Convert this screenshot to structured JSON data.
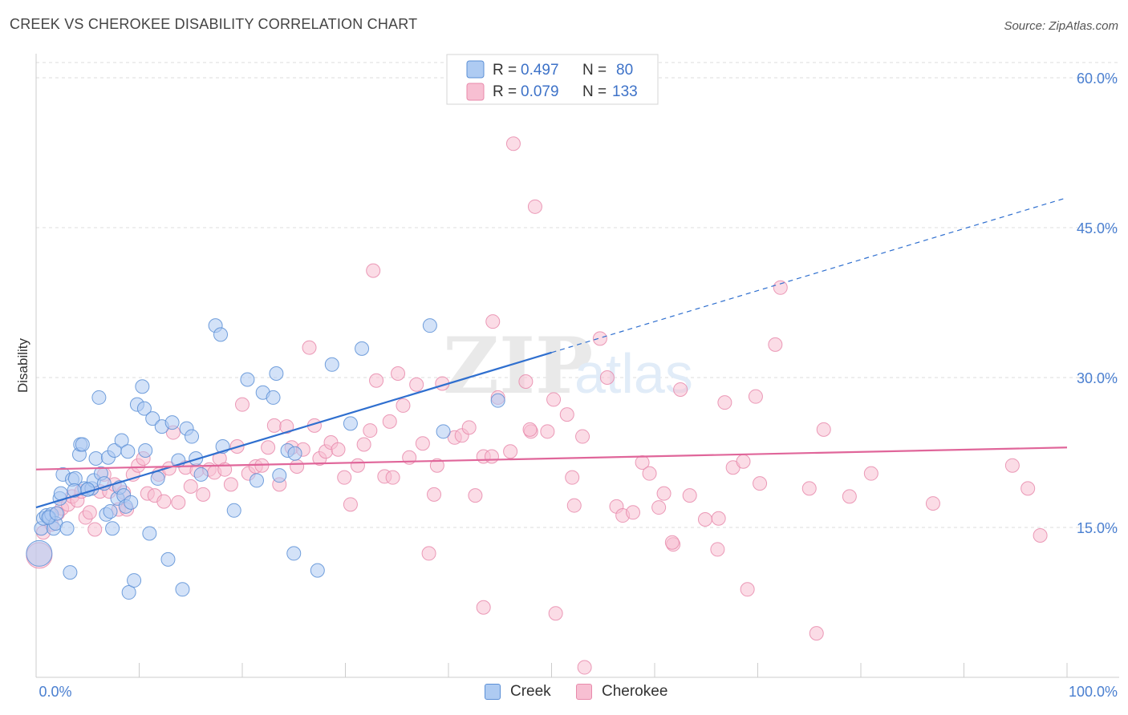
{
  "header": {
    "title": "CREEK VS CHEROKEE DISABILITY CORRELATION CHART",
    "source": "Source: ZipAtlas.com"
  },
  "watermark": {
    "part1": "ZIP",
    "part2": "atlas"
  },
  "colors": {
    "creek_fill": "#aecbf2",
    "creek_stroke": "#5b8fd6",
    "creek_line": "#2f6fcf",
    "cherokee_fill": "#f7bfd2",
    "cherokee_stroke": "#e88aab",
    "cherokee_line": "#e0669a",
    "tick_text": "#4a7fd0",
    "grid": "#dddddd"
  },
  "stats_legend": {
    "rows": [
      {
        "series": "Creek",
        "r_label": "R =",
        "r_value": "0.497",
        "n_label": "N =",
        "n_value": "80"
      },
      {
        "series": "Cherokee",
        "r_label": "R =",
        "r_value": "0.079",
        "n_label": "N =",
        "n_value": "133"
      }
    ]
  },
  "bottom_legend": {
    "items": [
      "Creek",
      "Cherokee"
    ]
  },
  "chart_data": {
    "type": "scatter",
    "title": "CREEK VS CHEROKEE DISABILITY CORRELATION CHART",
    "xlabel": "",
    "ylabel": "Disability",
    "xlim": [
      0,
      100
    ],
    "ylim": [
      0,
      60
    ],
    "x_tick_labels": [
      "0.0%",
      "100.0%"
    ],
    "y_ticks": [
      15,
      30,
      45,
      60
    ],
    "y_tick_labels": [
      "15.0%",
      "30.0%",
      "45.0%",
      "60.0%"
    ],
    "grid": true,
    "legend_position": "top-center",
    "series": [
      {
        "name": "Creek",
        "trend": {
          "x0": 0,
          "y0": 17.0,
          "x1": 50,
          "y1": 32.5,
          "dashed_to_x": 100,
          "dashed_to_y": 48.0
        },
        "points": [
          [
            0.3,
            12.4
          ],
          [
            0.5,
            14.9
          ],
          [
            0.7,
            15.9
          ],
          [
            1.0,
            16.2
          ],
          [
            1.3,
            16.0
          ],
          [
            1.5,
            16.3
          ],
          [
            1.7,
            14.9
          ],
          [
            1.9,
            15.4
          ],
          [
            2.3,
            17.9
          ],
          [
            2.4,
            18.4
          ],
          [
            2.6,
            20.3
          ],
          [
            3.0,
            14.9
          ],
          [
            3.3,
            10.5
          ],
          [
            3.5,
            19.8
          ],
          [
            3.8,
            19.9
          ],
          [
            4.2,
            22.3
          ],
          [
            4.3,
            23.3
          ],
          [
            4.5,
            23.3
          ],
          [
            4.7,
            18.9
          ],
          [
            5.0,
            18.8
          ],
          [
            5.4,
            18.9
          ],
          [
            5.6,
            19.7
          ],
          [
            5.8,
            21.9
          ],
          [
            6.1,
            28.0
          ],
          [
            6.3,
            20.4
          ],
          [
            6.6,
            19.4
          ],
          [
            6.8,
            16.3
          ],
          [
            7.0,
            22.0
          ],
          [
            7.2,
            16.6
          ],
          [
            7.4,
            14.9
          ],
          [
            7.6,
            22.7
          ],
          [
            7.9,
            17.9
          ],
          [
            8.1,
            19.0
          ],
          [
            8.3,
            23.7
          ],
          [
            8.5,
            18.2
          ],
          [
            8.7,
            17.1
          ],
          [
            8.9,
            22.6
          ],
          [
            9.0,
            8.5
          ],
          [
            9.5,
            9.7
          ],
          [
            9.8,
            27.3
          ],
          [
            10.3,
            29.1
          ],
          [
            10.5,
            26.9
          ],
          [
            10.6,
            22.7
          ],
          [
            11.0,
            14.4
          ],
          [
            11.3,
            25.9
          ],
          [
            11.8,
            19.9
          ],
          [
            12.2,
            25.1
          ],
          [
            12.8,
            11.8
          ],
          [
            13.2,
            25.5
          ],
          [
            13.8,
            21.7
          ],
          [
            14.2,
            8.8
          ],
          [
            14.6,
            24.9
          ],
          [
            15.1,
            24.1
          ],
          [
            15.5,
            21.9
          ],
          [
            16.0,
            20.3
          ],
          [
            17.4,
            35.2
          ],
          [
            17.9,
            34.3
          ],
          [
            18.1,
            23.1
          ],
          [
            19.2,
            16.7
          ],
          [
            20.5,
            29.8
          ],
          [
            21.4,
            19.7
          ],
          [
            22.0,
            28.5
          ],
          [
            23.0,
            28.0
          ],
          [
            23.3,
            30.4
          ],
          [
            24.4,
            22.7
          ],
          [
            23.6,
            20.2
          ],
          [
            25.0,
            12.4
          ],
          [
            25.1,
            22.4
          ],
          [
            27.3,
            10.7
          ],
          [
            28.7,
            31.3
          ],
          [
            30.5,
            25.4
          ],
          [
            31.6,
            32.9
          ],
          [
            38.2,
            35.2
          ],
          [
            39.5,
            24.6
          ],
          [
            44.8,
            27.7
          ],
          [
            5.0,
            18.8
          ],
          [
            3.7,
            18.7
          ],
          [
            1.2,
            16.0
          ],
          [
            9.2,
            17.5
          ],
          [
            2.0,
            16.4
          ]
        ]
      },
      {
        "name": "Cherokee",
        "trend": {
          "x0": 0,
          "y0": 20.8,
          "x1": 100,
          "y1": 23.0
        },
        "points": [
          [
            0.3,
            12.2
          ],
          [
            0.7,
            14.5
          ],
          [
            1.5,
            15.3
          ],
          [
            2.1,
            16.4
          ],
          [
            2.5,
            16.9
          ],
          [
            3.1,
            17.3
          ],
          [
            3.5,
            18.1
          ],
          [
            4.0,
            17.7
          ],
          [
            4.4,
            18.6
          ],
          [
            4.8,
            16.0
          ],
          [
            5.2,
            16.5
          ],
          [
            5.7,
            14.8
          ],
          [
            6.2,
            18.6
          ],
          [
            6.6,
            20.3
          ],
          [
            7.1,
            18.6
          ],
          [
            7.6,
            19.3
          ],
          [
            8.0,
            16.8
          ],
          [
            8.5,
            18.5
          ],
          [
            8.8,
            16.8
          ],
          [
            9.4,
            20.3
          ],
          [
            9.9,
            21.2
          ],
          [
            10.4,
            21.9
          ],
          [
            10.8,
            18.4
          ],
          [
            11.5,
            18.2
          ],
          [
            11.9,
            20.3
          ],
          [
            12.4,
            17.6
          ],
          [
            12.9,
            20.9
          ],
          [
            13.3,
            24.5
          ],
          [
            13.8,
            17.5
          ],
          [
            14.5,
            21.0
          ],
          [
            15.0,
            19.1
          ],
          [
            15.6,
            20.7
          ],
          [
            16.2,
            18.3
          ],
          [
            16.8,
            20.8
          ],
          [
            17.3,
            20.5
          ],
          [
            17.8,
            21.9
          ],
          [
            18.3,
            20.8
          ],
          [
            18.9,
            19.3
          ],
          [
            19.5,
            23.1
          ],
          [
            20.0,
            27.3
          ],
          [
            20.6,
            20.4
          ],
          [
            21.3,
            21.1
          ],
          [
            21.9,
            21.2
          ],
          [
            22.5,
            23.0
          ],
          [
            23.1,
            25.2
          ],
          [
            23.6,
            19.3
          ],
          [
            24.3,
            25.1
          ],
          [
            24.8,
            23.0
          ],
          [
            25.3,
            21.1
          ],
          [
            25.9,
            22.8
          ],
          [
            26.5,
            33.0
          ],
          [
            27.0,
            25.2
          ],
          [
            27.5,
            21.9
          ],
          [
            28.1,
            22.6
          ],
          [
            28.6,
            23.5
          ],
          [
            29.3,
            22.8
          ],
          [
            29.9,
            20.0
          ],
          [
            30.5,
            17.3
          ],
          [
            31.2,
            21.2
          ],
          [
            31.8,
            23.3
          ],
          [
            32.4,
            24.7
          ],
          [
            32.7,
            40.7
          ],
          [
            33.0,
            29.7
          ],
          [
            33.8,
            20.1
          ],
          [
            34.3,
            25.6
          ],
          [
            35.1,
            30.4
          ],
          [
            35.6,
            27.2
          ],
          [
            36.2,
            22.0
          ],
          [
            36.9,
            29.3
          ],
          [
            37.5,
            23.4
          ],
          [
            38.1,
            12.4
          ],
          [
            38.6,
            18.3
          ],
          [
            38.9,
            21.2
          ],
          [
            39.4,
            29.4
          ],
          [
            40.6,
            24.0
          ],
          [
            41.3,
            24.2
          ],
          [
            42.0,
            25.0
          ],
          [
            42.6,
            18.2
          ],
          [
            43.4,
            7.0
          ],
          [
            43.4,
            22.1
          ],
          [
            44.3,
            35.6
          ],
          [
            44.8,
            28.0
          ],
          [
            46.0,
            22.6
          ],
          [
            46.3,
            53.4
          ],
          [
            47.5,
            29.6
          ],
          [
            48.0,
            24.6
          ],
          [
            48.4,
            47.1
          ],
          [
            49.6,
            24.6
          ],
          [
            50.2,
            27.8
          ],
          [
            50.4,
            6.4
          ],
          [
            51.5,
            26.3
          ],
          [
            52.0,
            20.0
          ],
          [
            52.2,
            17.2
          ],
          [
            53.2,
            1.0
          ],
          [
            53.0,
            24.1
          ],
          [
            54.7,
            33.9
          ],
          [
            55.4,
            30.0
          ],
          [
            56.3,
            17.1
          ],
          [
            56.9,
            16.2
          ],
          [
            58.8,
            21.5
          ],
          [
            59.5,
            20.4
          ],
          [
            60.4,
            17.0
          ],
          [
            60.9,
            18.4
          ],
          [
            61.8,
            13.3
          ],
          [
            62.5,
            28.8
          ],
          [
            63.4,
            18.2
          ],
          [
            64.9,
            15.8
          ],
          [
            66.1,
            12.8
          ],
          [
            66.2,
            15.9
          ],
          [
            66.8,
            27.5
          ],
          [
            67.6,
            21.0
          ],
          [
            68.6,
            21.6
          ],
          [
            69.0,
            8.8
          ],
          [
            69.8,
            28.1
          ],
          [
            70.2,
            19.4
          ],
          [
            71.7,
            33.3
          ],
          [
            72.2,
            39.0
          ],
          [
            75.0,
            18.9
          ],
          [
            75.7,
            4.4
          ],
          [
            76.4,
            24.8
          ],
          [
            78.9,
            18.1
          ],
          [
            81.0,
            20.4
          ],
          [
            87.0,
            17.4
          ],
          [
            94.7,
            21.2
          ],
          [
            96.2,
            18.9
          ],
          [
            97.4,
            14.2
          ],
          [
            61.7,
            13.5
          ],
          [
            57.9,
            16.5
          ],
          [
            47.9,
            24.8
          ],
          [
            44.2,
            22.1
          ],
          [
            34.6,
            20.0
          ]
        ]
      }
    ]
  }
}
